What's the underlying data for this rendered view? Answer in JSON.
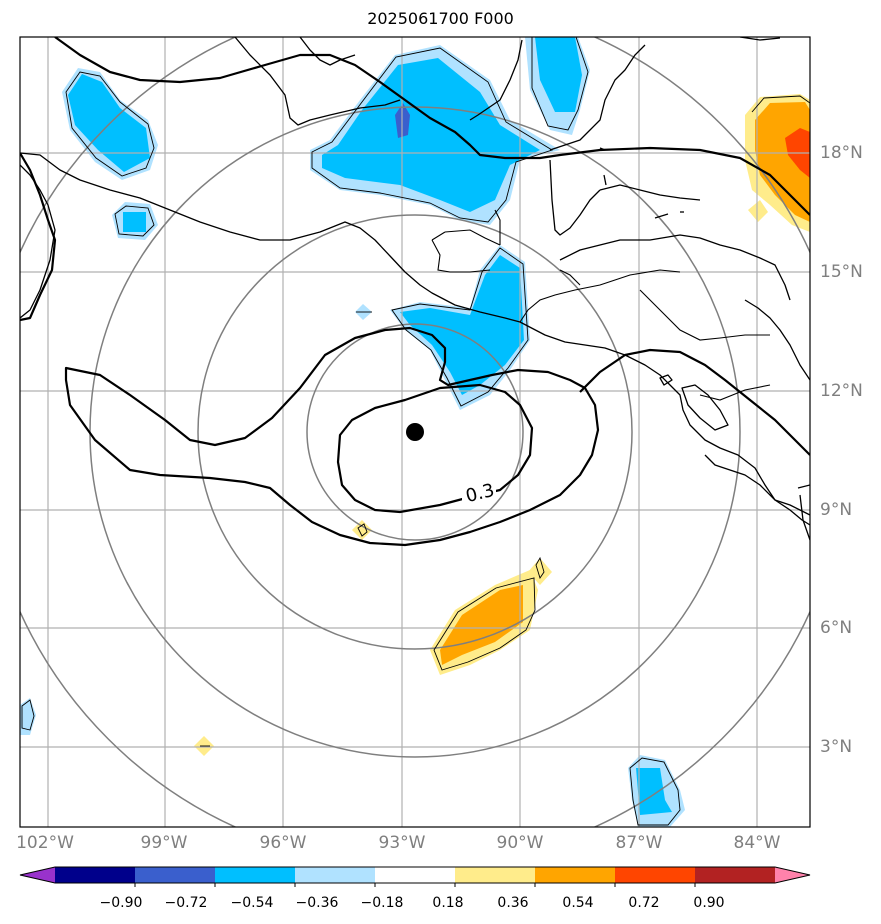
{
  "title": "2025061700 F000",
  "contour_label": "0.3",
  "lat_labels": [
    "18°N",
    "15°N",
    "12°N",
    "9°N",
    "6°N",
    "3°N"
  ],
  "lon_labels": [
    "102°W",
    "99°W",
    "96°W",
    "93°W",
    "90°W",
    "87°W",
    "84°W"
  ],
  "colorbar": {
    "ticks": [
      "−0.90",
      "−0.72",
      "−0.54",
      "−0.36",
      "−0.18",
      "0.18",
      "0.36",
      "0.54",
      "0.72",
      "0.90"
    ],
    "colors": [
      "#9932cc",
      "#00008b",
      "#3a5fcd",
      "#00bfff",
      "#b0e2ff",
      "#ffffff",
      "#ffec8b",
      "#ffa500",
      "#ff4500",
      "#b22222",
      "#ff82ab"
    ],
    "extend": "both"
  },
  "storm_center": {
    "lat": 10.9,
    "lon": "92.7°W"
  },
  "range_rings": 4
}
